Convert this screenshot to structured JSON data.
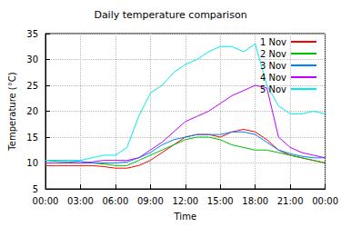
{
  "chart_data": {
    "type": "line",
    "title": "Daily temperature comparison",
    "x_label": "Time",
    "y_label": "Temperature (°C)",
    "x": [
      0,
      1,
      2,
      3,
      4,
      5,
      6,
      7,
      8,
      9,
      10,
      11,
      12,
      13,
      14,
      15,
      16,
      17,
      18,
      19,
      20,
      21,
      22,
      23,
      24
    ],
    "series": [
      {
        "name": "1 Nov",
        "color": "#ff0000",
        "values": [
          9.5,
          9.5,
          9.5,
          9.5,
          9.5,
          9.3,
          9.0,
          9.0,
          9.5,
          10.5,
          12,
          13.5,
          15,
          15.5,
          15.5,
          15,
          16,
          16.5,
          16,
          14.5,
          12.5,
          11.5,
          11,
          10.5,
          10
        ]
      },
      {
        "name": "2 Nov",
        "color": "#00c000",
        "values": [
          10.5,
          10.3,
          10.2,
          10,
          10,
          9.8,
          9.5,
          9.5,
          10.5,
          11.5,
          12.5,
          13.5,
          14.5,
          15,
          15,
          14.5,
          13.5,
          13,
          12.5,
          12.5,
          12,
          11.5,
          11,
          10.5,
          10
        ]
      },
      {
        "name": "3 Nov",
        "color": "#0080ff",
        "values": [
          10.5,
          10.5,
          10.5,
          10.3,
          10,
          10,
          10,
          10.2,
          11,
          12,
          13.5,
          14.5,
          15,
          15.5,
          15.5,
          15.5,
          16,
          16,
          15.5,
          14,
          12.5,
          11.8,
          11.3,
          11,
          11
        ]
      },
      {
        "name": "4 Nov",
        "color": "#c000ff",
        "values": [
          10,
          10,
          10,
          10,
          10.2,
          10.5,
          10.5,
          10.5,
          11,
          12.5,
          14,
          16,
          18,
          19,
          20,
          21.5,
          23,
          24,
          25,
          24.5,
          15,
          13,
          12,
          11.5,
          11
        ]
      },
      {
        "name": "5 Nov",
        "color": "#00eeee",
        "values": [
          10.5,
          10.5,
          10.5,
          10.5,
          11,
          11.5,
          11.5,
          13,
          19,
          23.5,
          25,
          27.5,
          29,
          30,
          31.5,
          32.5,
          32.5,
          31.5,
          33,
          25,
          21,
          19.5,
          19.5,
          20,
          19.5
        ]
      }
    ],
    "xlim": [
      0,
      24
    ],
    "xticks": [
      {
        "value": 0,
        "label": "00:00"
      },
      {
        "value": 3,
        "label": "03:00"
      },
      {
        "value": 6,
        "label": "06:00"
      },
      {
        "value": 9,
        "label": "09:00"
      },
      {
        "value": 12,
        "label": "12:00"
      },
      {
        "value": 15,
        "label": "15:00"
      },
      {
        "value": 18,
        "label": "18:00"
      },
      {
        "value": 21,
        "label": "21:00"
      },
      {
        "value": 24,
        "label": "00:00"
      }
    ],
    "ylim": [
      5,
      35
    ],
    "yticks": [
      5,
      10,
      15,
      20,
      25,
      30,
      35
    ],
    "grid": true,
    "legend": "top-right"
  }
}
